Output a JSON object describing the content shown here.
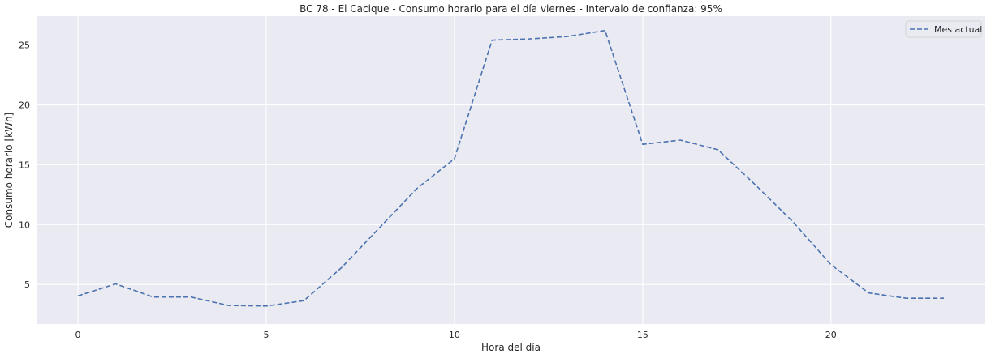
{
  "chart_data": {
    "type": "line",
    "title": "BC 78 - El Cacique - Consumo horario para el día viernes - Intervalo de confianza: 95%",
    "xlabel": "Hora del día",
    "ylabel": "Consumo horario [kWh]",
    "xlim": [
      -1.1,
      24.1
    ],
    "ylim": [
      1.7,
      27.4
    ],
    "xticks": [
      0,
      5,
      10,
      15,
      20
    ],
    "yticks": [
      5,
      10,
      15,
      20,
      25
    ],
    "xtick_labels": [
      "0",
      "5",
      "10",
      "15",
      "20"
    ],
    "ytick_labels": [
      "5",
      "10",
      "15",
      "20",
      "25"
    ],
    "grid": true,
    "legend_position": "top-right",
    "series": [
      {
        "name": "Mes actual",
        "style": "dashed",
        "color": "#4c72b0",
        "x": [
          0,
          1,
          2,
          3,
          4,
          5,
          6,
          7,
          8,
          9,
          10,
          11,
          12,
          13,
          14,
          15,
          16,
          17,
          18,
          19,
          20,
          21,
          22,
          23
        ],
        "y": [
          4.05,
          5.05,
          3.95,
          3.95,
          3.25,
          3.2,
          3.65,
          6.4,
          9.7,
          13.0,
          15.5,
          25.4,
          25.5,
          25.7,
          26.2,
          16.7,
          17.05,
          16.25,
          13.3,
          10.2,
          6.65,
          4.3,
          3.85,
          3.85
        ]
      }
    ],
    "background_color": "#eaeaf2",
    "grid_color": "#ffffff"
  }
}
